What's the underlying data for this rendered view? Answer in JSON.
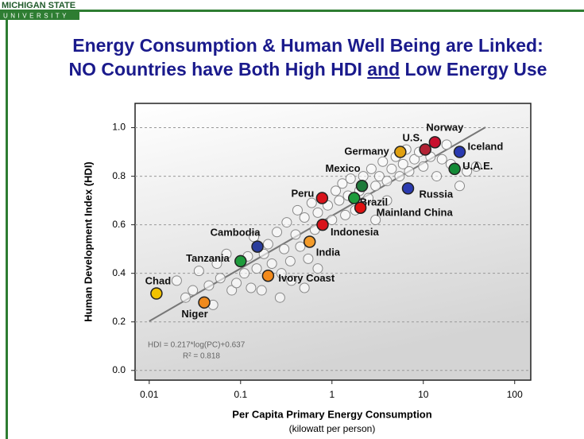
{
  "header": {
    "logo_line1": "MICHIGAN STATE",
    "logo_line2": "UNIVERSITY",
    "title_line1": "Energy Consumption & Human Well Being are Linked:",
    "title_line2": [
      "NO Countries have Both High HDI ",
      "and",
      " Low Energy Use"
    ]
  },
  "chart_data": {
    "type": "scatter",
    "xscale": "log",
    "xlabel": "Per Capita Primary Energy Consumption",
    "xlabel_note": "(kilowatt per person)",
    "ylabel": "Human Development Index (HDI)",
    "xlim": [
      0.007,
      150
    ],
    "ylim": [
      -0.04,
      1.1
    ],
    "xticks": [
      0.01,
      0.1,
      1,
      10,
      100
    ],
    "yticks": [
      {
        "value": 0,
        "label": "0.0"
      },
      0.2,
      0.4,
      0.6,
      0.8,
      {
        "value": 1,
        "label": "1.0"
      }
    ],
    "grid": true,
    "x": [
      0.02,
      0.025,
      0.03,
      0.035,
      0.045,
      0.05,
      0.055,
      0.06,
      0.07,
      0.08,
      0.09,
      0.11,
      0.12,
      0.13,
      0.14,
      0.15,
      0.17,
      0.18,
      0.2,
      0.22,
      0.25,
      0.27,
      0.3,
      0.32,
      0.35,
      0.4,
      0.42,
      0.45,
      0.5,
      0.5,
      0.55,
      0.6,
      0.65,
      0.7,
      0.7,
      0.9,
      1.0,
      1.1,
      1.2,
      1.3,
      1.4,
      1.5,
      1.6,
      1.8,
      2.0,
      2.2,
      2.5,
      2.7,
      3.0,
      3.0,
      3.3,
      3.6,
      4.0,
      4.0,
      4.5,
      5.0,
      5.5,
      6.0,
      6.5,
      7.0,
      8.0,
      9.0,
      10,
      12,
      14,
      16,
      18,
      20,
      25,
      30,
      38,
      0.28,
      0.36
    ],
    "values": [
      0.37,
      0.3,
      0.33,
      0.41,
      0.35,
      0.27,
      0.44,
      0.38,
      0.48,
      0.33,
      0.36,
      0.4,
      0.47,
      0.34,
      0.55,
      0.42,
      0.33,
      0.48,
      0.52,
      0.44,
      0.57,
      0.3,
      0.5,
      0.61,
      0.45,
      0.56,
      0.66,
      0.51,
      0.34,
      0.63,
      0.46,
      0.69,
      0.58,
      0.42,
      0.65,
      0.68,
      0.62,
      0.74,
      0.7,
      0.77,
      0.64,
      0.72,
      0.79,
      0.66,
      0.74,
      0.8,
      0.71,
      0.83,
      0.76,
      0.62,
      0.8,
      0.86,
      0.78,
      0.7,
      0.83,
      0.88,
      0.8,
      0.85,
      0.91,
      0.82,
      0.87,
      0.9,
      0.84,
      0.88,
      0.8,
      0.87,
      0.93,
      0.85,
      0.76,
      0.82,
      0.84,
      0.4,
      0.37
    ],
    "point_color": "#ffffff",
    "countries": {
      "names": [
        "Chad",
        "Niger",
        "Tanzania",
        "Cambodia",
        "Ivory Coast",
        "India",
        "Indonesia",
        "Peru",
        "Brazil",
        "Mainland China",
        "Mexico",
        "Russia",
        "Germany",
        "U.S.",
        "Norway",
        "Iceland",
        "U.A.E."
      ],
      "x": [
        0.012,
        0.04,
        0.1,
        0.153,
        0.2,
        0.57,
        0.79,
        0.78,
        1.75,
        2.05,
        2.13,
        6.8,
        5.6,
        10.5,
        13.4,
        25,
        22
      ],
      "values": [
        0.317,
        0.28,
        0.45,
        0.51,
        0.39,
        0.53,
        0.6,
        0.71,
        0.71,
        0.67,
        0.76,
        0.75,
        0.9,
        0.91,
        0.94,
        0.9,
        0.83
      ],
      "colors": [
        "#f2c200",
        "#f08a1c",
        "#1e9b3c",
        "#2a3d9c",
        "#f28a1c",
        "#f39b2a",
        "#d8131b",
        "#d8131b",
        "#1e9b3c",
        "#e01010",
        "#1e7a3a",
        "#2a3ab0",
        "#e0a010",
        "#b22234",
        "#c8102e",
        "#2a3ab0",
        "#138a36"
      ]
    },
    "fit": {
      "slope": 0.217,
      "intercept": 0.637,
      "x": [
        0.01,
        48
      ]
    },
    "equation": "HDI = 0.217*log(PC)+0.637",
    "r2": "R² = 0.818"
  }
}
